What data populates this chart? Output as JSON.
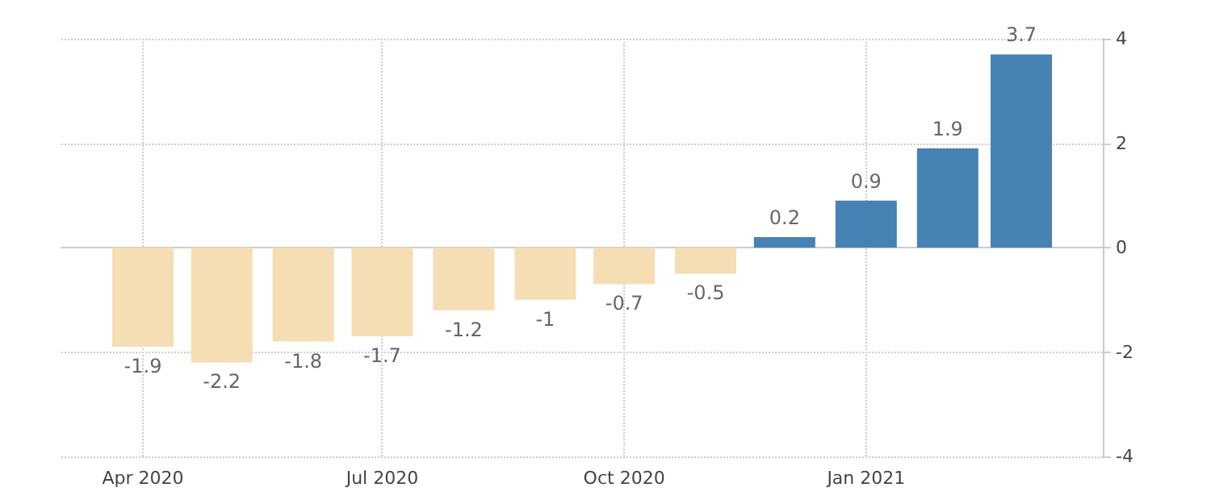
{
  "chart_data": {
    "type": "bar",
    "x": [
      "2020-04",
      "2020-05",
      "2020-06",
      "2020-07",
      "2020-08",
      "2020-09",
      "2020-10",
      "2020-11",
      "2020-12",
      "2021-01",
      "2021-02",
      "2021-03"
    ],
    "values": [
      -1.9,
      -2.2,
      -1.8,
      -1.7,
      -1.2,
      -1,
      -0.7,
      -0.5,
      0.2,
      0.9,
      1.9,
      3.7
    ],
    "colors": [
      "#f5deb3",
      "#f5deb3",
      "#f5deb3",
      "#f5deb3",
      "#f5deb3",
      "#f5deb3",
      "#f5deb3",
      "#f5deb3",
      "#4682b4",
      "#4682b4",
      "#4682b4",
      "#4682b4"
    ],
    "xlim": [
      "2020-03",
      "2021-04"
    ],
    "xticks": [
      {
        "value": "2020-04",
        "label": "Apr 2020"
      },
      {
        "value": "2020-07",
        "label": "Jul 2020"
      },
      {
        "value": "2020-10",
        "label": "Oct 2020"
      },
      {
        "value": "2021-01",
        "label": "Jan 2021"
      }
    ],
    "ylim": [
      -4,
      4
    ],
    "yticks": [
      -4,
      -2,
      0,
      2,
      4
    ],
    "grid": true,
    "data_labels": true
  }
}
